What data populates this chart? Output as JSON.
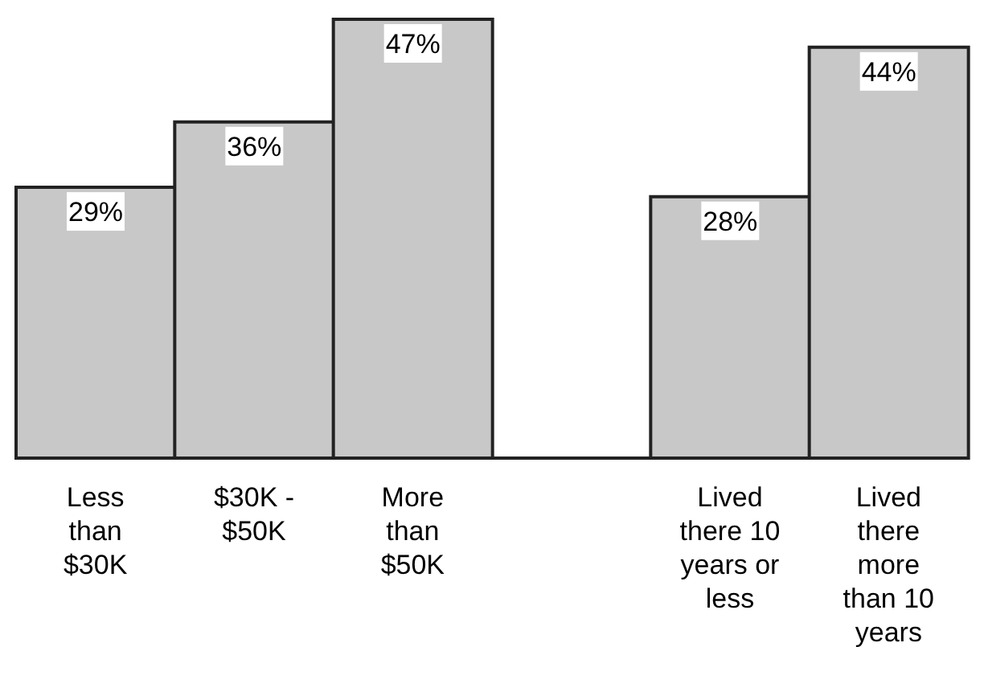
{
  "chart_data": {
    "type": "bar",
    "categories": [
      "Less than $30K",
      "$30K - $50K",
      "More than $50K",
      null,
      "Lived there 10 years or less",
      "Lived there more than 10 years"
    ],
    "values": [
      29,
      36,
      47,
      null,
      28,
      44
    ],
    "value_labels": [
      "29%",
      "36%",
      "47%",
      null,
      "28%",
      "44%"
    ],
    "color": "#c8c8c8"
  }
}
